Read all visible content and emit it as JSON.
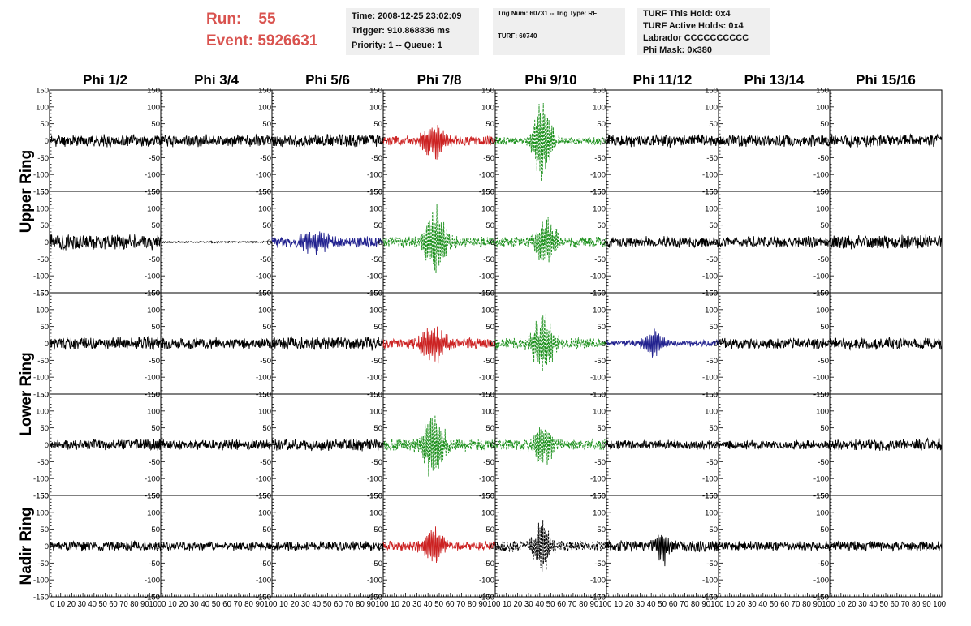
{
  "header": {
    "run_label": "Run:",
    "run_value": "55",
    "event_label": "Event:",
    "event_value": "5926631"
  },
  "info_box_1": {
    "time": "Time: 2008-12-25 23:02:09",
    "trigger": "Trigger: 910.868836 ms",
    "priority": "Priority: 1 -- Queue: 1"
  },
  "info_box_2": {
    "trig_num": "Trig Num: 60731 -- Trig Type: RF",
    "turf": "TURF: 60740"
  },
  "info_box_3": {
    "this_hold": "TURF This Hold: 0x4",
    "active_holds": "TURF Active Holds: 0x4",
    "labrador": "Labrador CCCCCCCCCC",
    "phi_mask": "Phi Mask: 0x380"
  },
  "colors": {
    "normal": "#000000",
    "red": "#cc2222",
    "green": "#1a8f1a",
    "blue": "#22228f",
    "info_box_bg": "#efefef",
    "run_text": "#d9534f"
  },
  "chart_data": {
    "type": "line",
    "column_labels": [
      "Phi 1/2",
      "Phi 3/4",
      "Phi 5/6",
      "Phi 7/8",
      "Phi 9/10",
      "Phi 11/12",
      "Phi 13/14",
      "Phi 15/16"
    ],
    "ring_labels": [
      "Upper Ring",
      "Lower Ring",
      "Nadir Ring"
    ],
    "ring_row_spans": [
      2,
      2,
      1
    ],
    "ylim": [
      -150,
      150
    ],
    "xlim": [
      0,
      100
    ],
    "y_ticks": [
      "150",
      "100",
      "50",
      "0",
      "-50",
      "-100",
      "-150"
    ],
    "x_tick_text_cell": "0 10 20 30 40 50 60 70 80 90 100",
    "x_tick_text_first": "0 10 20 30 40 50 60 70 80 90100",
    "x_tick_text_last": "0 10 20 30 40 50 60 70 80 90 100",
    "x_tick_text": "0 10 20 30 40 50 60 70 80 9010",
    "waveforms": [
      [
        {
          "color": "normal",
          "style": "solid",
          "noise": 15,
          "pulse_amp": 0,
          "pulse_center": 45,
          "pulse_width": 10,
          "seed": 11
        },
        {
          "color": "normal",
          "style": "solid",
          "noise": 15,
          "pulse_amp": 0,
          "pulse_center": 45,
          "pulse_width": 10,
          "seed": 12
        },
        {
          "color": "normal",
          "style": "solid",
          "noise": 16,
          "pulse_amp": 0,
          "pulse_center": 45,
          "pulse_width": 10,
          "seed": 13
        },
        {
          "color": "red",
          "style": "solid",
          "noise": 12,
          "pulse_amp": 55,
          "pulse_center": 45,
          "pulse_width": 12,
          "seed": 14
        },
        {
          "color": "green",
          "style": "dashed",
          "noise": 10,
          "pulse_amp": 130,
          "pulse_center": 42,
          "pulse_width": 9,
          "seed": 15
        },
        {
          "color": "normal",
          "style": "solid",
          "noise": 15,
          "pulse_amp": 0,
          "pulse_center": 45,
          "pulse_width": 10,
          "seed": 16
        },
        {
          "color": "normal",
          "style": "solid",
          "noise": 15,
          "pulse_amp": 0,
          "pulse_center": 45,
          "pulse_width": 10,
          "seed": 17
        },
        {
          "color": "normal",
          "style": "solid",
          "noise": 16,
          "pulse_amp": 0,
          "pulse_center": 45,
          "pulse_width": 10,
          "seed": 18
        }
      ],
      [
        {
          "color": "normal",
          "style": "solid",
          "noise": 20,
          "pulse_amp": 0,
          "pulse_center": 45,
          "pulse_width": 10,
          "seed": 21
        },
        {
          "color": "normal",
          "style": "solid",
          "noise": 2,
          "pulse_amp": 0,
          "pulse_center": 45,
          "pulse_width": 10,
          "seed": 22
        },
        {
          "color": "blue",
          "style": "solid",
          "noise": 14,
          "pulse_amp": 30,
          "pulse_center": 38,
          "pulse_width": 14,
          "seed": 23
        },
        {
          "color": "green",
          "style": "dashed",
          "noise": 14,
          "pulse_amp": 110,
          "pulse_center": 47,
          "pulse_width": 10,
          "seed": 24
        },
        {
          "color": "green",
          "style": "dashed",
          "noise": 14,
          "pulse_amp": 75,
          "pulse_center": 45,
          "pulse_width": 10,
          "seed": 25
        },
        {
          "color": "normal",
          "style": "solid",
          "noise": 14,
          "pulse_amp": 0,
          "pulse_center": 45,
          "pulse_width": 10,
          "seed": 26
        },
        {
          "color": "normal",
          "style": "solid",
          "noise": 14,
          "pulse_amp": 0,
          "pulse_center": 45,
          "pulse_width": 10,
          "seed": 27
        },
        {
          "color": "normal",
          "style": "solid",
          "noise": 18,
          "pulse_amp": 0,
          "pulse_center": 45,
          "pulse_width": 10,
          "seed": 28
        }
      ],
      [
        {
          "color": "normal",
          "style": "solid",
          "noise": 16,
          "pulse_amp": 0,
          "pulse_center": 45,
          "pulse_width": 10,
          "seed": 31
        },
        {
          "color": "normal",
          "style": "solid",
          "noise": 14,
          "pulse_amp": 0,
          "pulse_center": 45,
          "pulse_width": 10,
          "seed": 32
        },
        {
          "color": "normal",
          "style": "solid",
          "noise": 17,
          "pulse_amp": 0,
          "pulse_center": 45,
          "pulse_width": 10,
          "seed": 33
        },
        {
          "color": "red",
          "style": "solid",
          "noise": 14,
          "pulse_amp": 55,
          "pulse_center": 45,
          "pulse_width": 12,
          "seed": 34
        },
        {
          "color": "green",
          "style": "dashed",
          "noise": 14,
          "pulse_amp": 90,
          "pulse_center": 43,
          "pulse_width": 10,
          "seed": 35
        },
        {
          "color": "blue",
          "style": "solid",
          "noise": 8,
          "pulse_amp": 40,
          "pulse_center": 42,
          "pulse_width": 10,
          "seed": 36
        },
        {
          "color": "normal",
          "style": "solid",
          "noise": 14,
          "pulse_amp": 0,
          "pulse_center": 45,
          "pulse_width": 10,
          "seed": 37
        },
        {
          "color": "normal",
          "style": "solid",
          "noise": 15,
          "pulse_amp": 0,
          "pulse_center": 45,
          "pulse_width": 10,
          "seed": 38
        }
      ],
      [
        {
          "color": "normal",
          "style": "solid",
          "noise": 14,
          "pulse_amp": 0,
          "pulse_center": 45,
          "pulse_width": 10,
          "seed": 41
        },
        {
          "color": "normal",
          "style": "solid",
          "noise": 13,
          "pulse_amp": 0,
          "pulse_center": 45,
          "pulse_width": 10,
          "seed": 42
        },
        {
          "color": "normal",
          "style": "solid",
          "noise": 15,
          "pulse_amp": 0,
          "pulse_center": 45,
          "pulse_width": 10,
          "seed": 43
        },
        {
          "color": "green",
          "style": "dashed",
          "noise": 16,
          "pulse_amp": 105,
          "pulse_center": 45,
          "pulse_width": 10,
          "seed": 44
        },
        {
          "color": "green",
          "style": "dashed",
          "noise": 14,
          "pulse_amp": 70,
          "pulse_center": 43,
          "pulse_width": 9,
          "seed": 45
        },
        {
          "color": "normal",
          "style": "solid",
          "noise": 12,
          "pulse_amp": 0,
          "pulse_center": 45,
          "pulse_width": 10,
          "seed": 46
        },
        {
          "color": "normal",
          "style": "solid",
          "noise": 11,
          "pulse_amp": 0,
          "pulse_center": 45,
          "pulse_width": 10,
          "seed": 47
        },
        {
          "color": "normal",
          "style": "solid",
          "noise": 16,
          "pulse_amp": 0,
          "pulse_center": 45,
          "pulse_width": 10,
          "seed": 48
        }
      ],
      [
        {
          "color": "normal",
          "style": "solid",
          "noise": 13,
          "pulse_amp": 0,
          "pulse_center": 45,
          "pulse_width": 10,
          "seed": 51
        },
        {
          "color": "normal",
          "style": "solid",
          "noise": 12,
          "pulse_amp": 0,
          "pulse_center": 45,
          "pulse_width": 10,
          "seed": 52
        },
        {
          "color": "normal",
          "style": "solid",
          "noise": 12,
          "pulse_amp": 0,
          "pulse_center": 45,
          "pulse_width": 10,
          "seed": 53
        },
        {
          "color": "red",
          "style": "solid",
          "noise": 12,
          "pulse_amp": 55,
          "pulse_center": 45,
          "pulse_width": 10,
          "seed": 54
        },
        {
          "color": "normal",
          "style": "dashed",
          "noise": 14,
          "pulse_amp": 80,
          "pulse_center": 42,
          "pulse_width": 9,
          "seed": 55
        },
        {
          "color": "normal",
          "style": "solid",
          "noise": 14,
          "pulse_amp": 60,
          "pulse_center": 50,
          "pulse_width": 6,
          "seed": 56
        },
        {
          "color": "normal",
          "style": "solid",
          "noise": 12,
          "pulse_amp": 0,
          "pulse_center": 45,
          "pulse_width": 10,
          "seed": 57
        },
        {
          "color": "normal",
          "style": "solid",
          "noise": 13,
          "pulse_amp": 0,
          "pulse_center": 45,
          "pulse_width": 10,
          "seed": 58
        }
      ]
    ]
  }
}
